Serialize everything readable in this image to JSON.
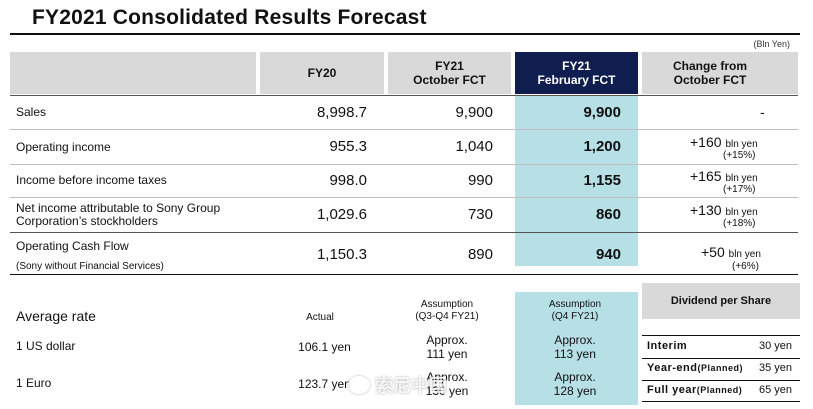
{
  "title": "FY2021 Consolidated Results Forecast",
  "unit_note": "(Bln Yen)",
  "columns": {
    "fy20": "FY20",
    "fy21_oct_line1": "FY21",
    "fy21_oct_line2": "October FCT",
    "fy21_feb_line1": "FY21",
    "fy21_feb_line2": "February FCT",
    "change_line1": "Change from",
    "change_line2": "October FCT"
  },
  "rows": [
    {
      "label": "Sales",
      "fy20": "8,998.7",
      "oct": "9,900",
      "feb": "9,900",
      "change": "-",
      "change_unit": "",
      "change_pct": ""
    },
    {
      "label": "Operating income",
      "fy20": "955.3",
      "oct": "1,040",
      "feb": "1,200",
      "change": "+160",
      "change_unit": "bln yen",
      "change_pct": "(+15%)"
    },
    {
      "label": "Income before income taxes",
      "fy20": "998.0",
      "oct": "990",
      "feb": "1,155",
      "change": "+165",
      "change_unit": "bln yen",
      "change_pct": "(+17%)"
    },
    {
      "label_line1": "Net income attributable to Sony Group",
      "label_line2": "Corporation’s stockholders",
      "fy20": "1,029.6",
      "oct": "730",
      "feb": "860",
      "change": "+130",
      "change_unit": "bln yen",
      "change_pct": "(+18%)"
    },
    {
      "label": "Operating Cash Flow",
      "label_sub": "(Sony without Financial Services)",
      "fy20": "1,150.3",
      "oct": "890",
      "feb": "940",
      "change": "+50",
      "change_unit": "bln yen",
      "change_pct": "(+6%)"
    }
  ],
  "rates": {
    "label": "Average rate",
    "actual_hdr": "Actual",
    "oct_hdr_line1": "Assumption",
    "oct_hdr_line2": "(Q3-Q4 FY21)",
    "feb_hdr_line1": "Assumption",
    "feb_hdr_line2": "(Q4 FY21)",
    "items": [
      {
        "label": "1 US dollar",
        "actual": "106.1 yen",
        "oct_line1": "Approx.",
        "oct_line2": "111 yen",
        "feb_line1": "Approx.",
        "feb_line2": "113 yen"
      },
      {
        "label": "1 Euro",
        "actual": "123.7 yen",
        "oct_line1": "Approx.",
        "oct_line2": "130 yen",
        "feb_line1": "Approx.",
        "feb_line2": "128 yen"
      }
    ]
  },
  "dividend": {
    "title": "Dividend per Share",
    "items": [
      {
        "label": "Interim",
        "note": "",
        "value": "30 yen"
      },
      {
        "label": "Year-end",
        "note": "(Planned)",
        "value": "35 yen"
      },
      {
        "label": "Full year",
        "note": "(Planned)",
        "value": "65 yen"
      }
    ]
  },
  "watermark": "索尼中国"
}
